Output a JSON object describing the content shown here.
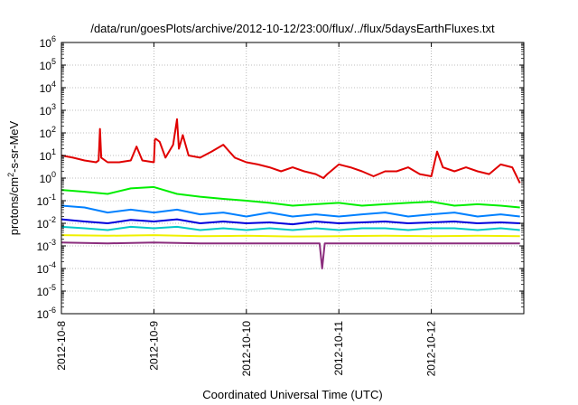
{
  "chart_data": {
    "type": "line",
    "title": "/data/run/goesPlots/archive/2012-10-12/23:00/flux/../flux/5daysEarthFluxes.txt",
    "xlabel": "Coordinated Universal Time (UTC)",
    "ylabel": {
      "base": "protons/cm",
      "sup": "2",
      "rest": "-s-sr-MeV"
    },
    "x_scale": "date",
    "xlim": [
      "2012-10-08T00:00",
      "2012-10-13T00:00"
    ],
    "x_ticks": [
      "2012-10-8",
      "2012-10-9",
      "2012-10-10",
      "2012-10-11",
      "2012-10-12"
    ],
    "y_scale": "log",
    "ylim": [
      1e-06,
      1000000.0
    ],
    "y_ticks": [
      {
        "base": "10",
        "exp": "-6"
      },
      {
        "base": "10",
        "exp": "-5"
      },
      {
        "base": "10",
        "exp": "-4"
      },
      {
        "base": "10",
        "exp": "-3"
      },
      {
        "base": "10",
        "exp": "-2"
      },
      {
        "base": "10",
        "exp": "-1"
      },
      {
        "base": "10",
        "exp": "0"
      },
      {
        "base": "10",
        "exp": "1"
      },
      {
        "base": "10",
        "exp": "2"
      },
      {
        "base": "10",
        "exp": "3"
      },
      {
        "base": "10",
        "exp": "4"
      },
      {
        "base": "10",
        "exp": "5"
      },
      {
        "base": "10",
        "exp": "6"
      }
    ],
    "grid": true,
    "legend": "none",
    "series": [
      {
        "color": "#e00000",
        "x": [
          "2012-10-08T00:00",
          "2012-10-08T03:00",
          "2012-10-08T06:00",
          "2012-10-08T09:00",
          "2012-10-08T09:40",
          "2012-10-08T10:00",
          "2012-10-08T10:20",
          "2012-10-08T12:00",
          "2012-10-08T15:00",
          "2012-10-08T18:00",
          "2012-10-08T19:30",
          "2012-10-08T21:00",
          "2012-10-09T00:00",
          "2012-10-09T00:15",
          "2012-10-09T00:30",
          "2012-10-09T01:30",
          "2012-10-09T03:00",
          "2012-10-09T05:00",
          "2012-10-09T06:00",
          "2012-10-09T06:30",
          "2012-10-09T07:30",
          "2012-10-09T08:30",
          "2012-10-09T09:00",
          "2012-10-09T12:00",
          "2012-10-09T15:00",
          "2012-10-09T18:00",
          "2012-10-09T21:00",
          "2012-10-10T00:00",
          "2012-10-10T03:00",
          "2012-10-10T06:00",
          "2012-10-10T09:00",
          "2012-10-10T12:00",
          "2012-10-10T15:00",
          "2012-10-10T18:00",
          "2012-10-10T20:00",
          "2012-10-10T21:00",
          "2012-10-11T00:00",
          "2012-10-11T03:00",
          "2012-10-11T06:00",
          "2012-10-11T09:00",
          "2012-10-11T12:00",
          "2012-10-11T15:00",
          "2012-10-11T18:00",
          "2012-10-11T21:00",
          "2012-10-12T00:00",
          "2012-10-12T01:30",
          "2012-10-12T03:00",
          "2012-10-12T06:00",
          "2012-10-12T09:00",
          "2012-10-12T12:00",
          "2012-10-12T15:00",
          "2012-10-12T18:00",
          "2012-10-12T21:00",
          "2012-10-12T23:00"
        ],
        "y": [
          10,
          8,
          6,
          5,
          6,
          150,
          8,
          5,
          5,
          6,
          25,
          6,
          5,
          50,
          55,
          40,
          8,
          30,
          400,
          20,
          80,
          20,
          10,
          8,
          15,
          30,
          8,
          5,
          4,
          3,
          2,
          3,
          2,
          1.5,
          1,
          1.5,
          4,
          3,
          2,
          1.2,
          2,
          2,
          3,
          1.5,
          1.2,
          15,
          3,
          2,
          3,
          2,
          1.5,
          4,
          3,
          0.6
        ]
      },
      {
        "color": "#00ee00",
        "x": [
          "2012-10-08T00:00",
          "2012-10-08T06:00",
          "2012-10-08T12:00",
          "2012-10-08T18:00",
          "2012-10-09T00:00",
          "2012-10-09T06:00",
          "2012-10-09T12:00",
          "2012-10-09T18:00",
          "2012-10-10T00:00",
          "2012-10-10T06:00",
          "2012-10-10T12:00",
          "2012-10-10T18:00",
          "2012-10-11T00:00",
          "2012-10-11T06:00",
          "2012-10-11T12:00",
          "2012-10-11T18:00",
          "2012-10-12T00:00",
          "2012-10-12T06:00",
          "2012-10-12T12:00",
          "2012-10-12T18:00",
          "2012-10-12T23:00"
        ],
        "y": [
          0.3,
          0.25,
          0.2,
          0.35,
          0.4,
          0.2,
          0.15,
          0.12,
          0.1,
          0.08,
          0.06,
          0.07,
          0.08,
          0.06,
          0.07,
          0.08,
          0.09,
          0.06,
          0.07,
          0.06,
          0.05
        ]
      },
      {
        "color": "#0080ff",
        "x": [
          "2012-10-08T00:00",
          "2012-10-08T06:00",
          "2012-10-08T12:00",
          "2012-10-08T18:00",
          "2012-10-09T00:00",
          "2012-10-09T06:00",
          "2012-10-09T12:00",
          "2012-10-09T18:00",
          "2012-10-10T00:00",
          "2012-10-10T06:00",
          "2012-10-10T12:00",
          "2012-10-10T18:00",
          "2012-10-11T00:00",
          "2012-10-11T06:00",
          "2012-10-11T12:00",
          "2012-10-11T18:00",
          "2012-10-12T00:00",
          "2012-10-12T06:00",
          "2012-10-12T12:00",
          "2012-10-12T18:00",
          "2012-10-12T23:00"
        ],
        "y": [
          0.06,
          0.05,
          0.03,
          0.04,
          0.03,
          0.04,
          0.025,
          0.03,
          0.02,
          0.03,
          0.02,
          0.025,
          0.02,
          0.025,
          0.03,
          0.02,
          0.025,
          0.03,
          0.02,
          0.025,
          0.02
        ]
      },
      {
        "color": "#0000dd",
        "x": [
          "2012-10-08T00:00",
          "2012-10-08T06:00",
          "2012-10-08T12:00",
          "2012-10-08T18:00",
          "2012-10-09T00:00",
          "2012-10-09T06:00",
          "2012-10-09T12:00",
          "2012-10-09T18:00",
          "2012-10-10T00:00",
          "2012-10-10T06:00",
          "2012-10-10T12:00",
          "2012-10-10T18:00",
          "2012-10-11T00:00",
          "2012-10-11T06:00",
          "2012-10-11T12:00",
          "2012-10-11T18:00",
          "2012-10-12T00:00",
          "2012-10-12T06:00",
          "2012-10-12T12:00",
          "2012-10-12T18:00",
          "2012-10-12T23:00"
        ],
        "y": [
          0.015,
          0.012,
          0.01,
          0.014,
          0.012,
          0.015,
          0.01,
          0.012,
          0.01,
          0.011,
          0.009,
          0.012,
          0.01,
          0.011,
          0.012,
          0.01,
          0.011,
          0.012,
          0.01,
          0.011,
          0.01
        ]
      },
      {
        "color": "#00c8c8",
        "x": [
          "2012-10-08T00:00",
          "2012-10-08T06:00",
          "2012-10-08T12:00",
          "2012-10-08T18:00",
          "2012-10-09T00:00",
          "2012-10-09T06:00",
          "2012-10-09T12:00",
          "2012-10-09T18:00",
          "2012-10-10T00:00",
          "2012-10-10T06:00",
          "2012-10-10T12:00",
          "2012-10-10T18:00",
          "2012-10-11T00:00",
          "2012-10-11T06:00",
          "2012-10-11T12:00",
          "2012-10-11T18:00",
          "2012-10-12T00:00",
          "2012-10-12T06:00",
          "2012-10-12T12:00",
          "2012-10-12T18:00",
          "2012-10-12T23:00"
        ],
        "y": [
          0.007,
          0.006,
          0.005,
          0.007,
          0.006,
          0.007,
          0.005,
          0.006,
          0.005,
          0.006,
          0.005,
          0.006,
          0.005,
          0.006,
          0.006,
          0.005,
          0.006,
          0.006,
          0.005,
          0.006,
          0.005
        ]
      },
      {
        "color": "#f0f000",
        "x": [
          "2012-10-08T00:00",
          "2012-10-08T12:00",
          "2012-10-09T00:00",
          "2012-10-09T12:00",
          "2012-10-10T00:00",
          "2012-10-10T12:00",
          "2012-10-11T00:00",
          "2012-10-11T12:00",
          "2012-10-12T00:00",
          "2012-10-12T12:00",
          "2012-10-12T23:00"
        ],
        "y": [
          0.003,
          0.0028,
          0.003,
          0.0027,
          0.0028,
          0.0026,
          0.0027,
          0.0028,
          0.0027,
          0.0028,
          0.0027
        ]
      },
      {
        "color": "#8b2d7d",
        "x": [
          "2012-10-08T00:00",
          "2012-10-08T12:00",
          "2012-10-09T00:00",
          "2012-10-09T12:00",
          "2012-10-10T00:00",
          "2012-10-10T12:00",
          "2012-10-10T19:00",
          "2012-10-10T19:40",
          "2012-10-10T20:20",
          "2012-10-11T00:00",
          "2012-10-11T12:00",
          "2012-10-12T00:00",
          "2012-10-12T12:00",
          "2012-10-12T23:00"
        ],
        "y": [
          0.0014,
          0.0013,
          0.0014,
          0.0013,
          0.0013,
          0.0013,
          0.0013,
          0.0001,
          0.0013,
          0.0013,
          0.0013,
          0.0013,
          0.0013,
          0.0013
        ]
      }
    ]
  }
}
